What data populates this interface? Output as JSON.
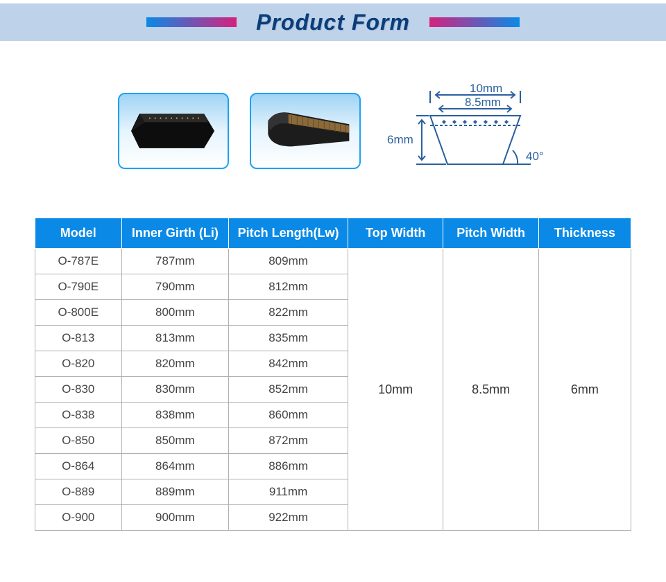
{
  "header": {
    "title": "Product Form",
    "title_color": "#0b3d78",
    "bar_bg": "#bed2ea",
    "gradient_left": [
      "#0a8ae6",
      "#d6217f"
    ],
    "gradient_right": [
      "#d6217f",
      "#0a8ae6"
    ]
  },
  "diagram": {
    "top_width": "10mm",
    "pitch_width": "8.5mm",
    "height": "6mm",
    "angle": "40°",
    "stroke_color": "#2a5f9e",
    "fill_color": "#ffffff"
  },
  "product_images": {
    "border_color": "#1da2f1",
    "bg_gradient": [
      "#9fd4f5",
      "#e6f4fd",
      "#ffffff"
    ]
  },
  "table": {
    "header_bg": "#0a8ae6",
    "header_color": "#ffffff",
    "cell_border": "#b0b0b0",
    "columns": [
      "Model",
      "Inner Girth (Li)",
      "Pitch Length(Lw)",
      "Top Width",
      "Pitch Width",
      "Thickness"
    ],
    "rows": [
      {
        "model": "O-787E",
        "li": "787mm",
        "lw": "809mm"
      },
      {
        "model": "O-790E",
        "li": "790mm",
        "lw": "812mm"
      },
      {
        "model": "O-800E",
        "li": "800mm",
        "lw": "822mm"
      },
      {
        "model": "O-813",
        "li": "813mm",
        "lw": "835mm"
      },
      {
        "model": "O-820",
        "li": "820mm",
        "lw": "842mm"
      },
      {
        "model": "O-830",
        "li": "830mm",
        "lw": "852mm"
      },
      {
        "model": "O-838",
        "li": "838mm",
        "lw": "860mm"
      },
      {
        "model": "O-850",
        "li": "850mm",
        "lw": "872mm"
      },
      {
        "model": "O-864",
        "li": "864mm",
        "lw": "886mm"
      },
      {
        "model": "O-889",
        "li": "889mm",
        "lw": "911mm"
      },
      {
        "model": "O-900",
        "li": "900mm",
        "lw": "922mm"
      }
    ],
    "merged": {
      "top_width": "10mm",
      "pitch_width": "8.5mm",
      "thickness": "6mm"
    }
  }
}
